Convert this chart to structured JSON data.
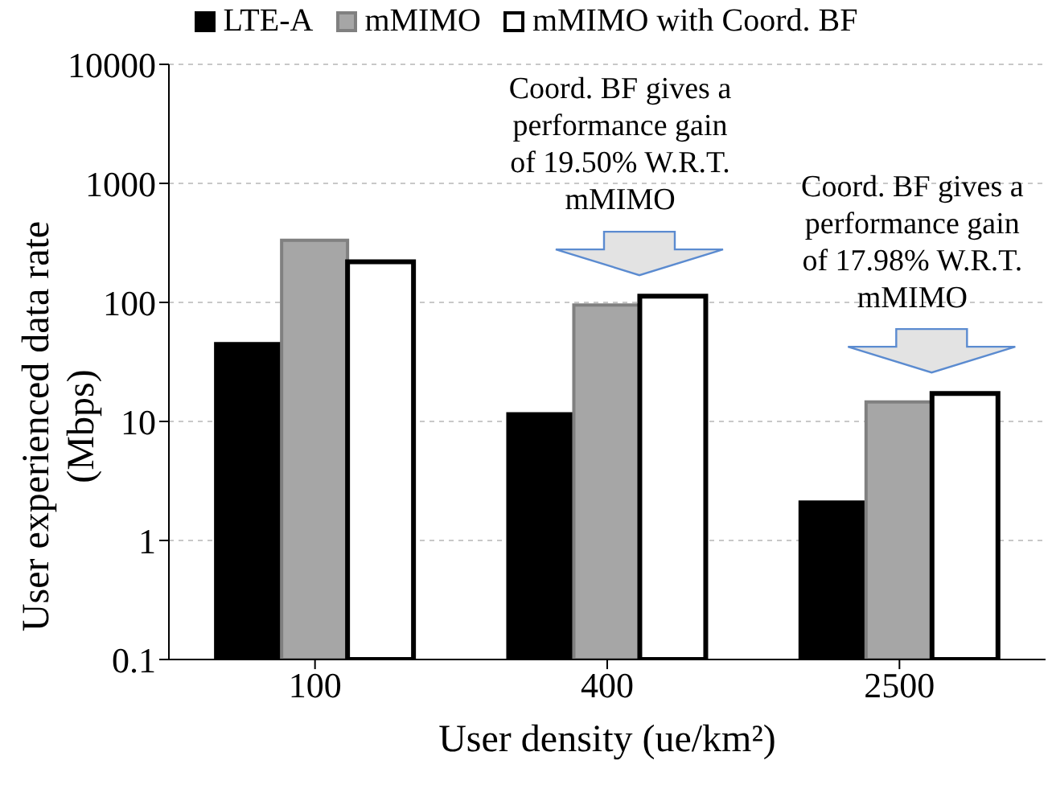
{
  "chart_data": {
    "type": "bar",
    "xlabel": "User density (ue/km²)",
    "ylabel": "User experienced data rate (Mbps)",
    "categories": [
      "100",
      "400",
      "2500"
    ],
    "series": [
      {
        "name": "LTE-A",
        "color": "#000000",
        "values": [
          45,
          11.6,
          2.1
        ]
      },
      {
        "name": "mMIMO",
        "color": "#a6a6a6",
        "values": [
          333,
          95,
          14.6
        ]
      },
      {
        "name": "mMIMO with Coord. BF",
        "color": "#ffffff",
        "values": [
          219,
          113,
          17.2
        ]
      }
    ],
    "log": "y",
    "ylim": [
      0.1,
      10000
    ],
    "yticks": [
      0.1,
      1,
      10,
      100,
      1000,
      10000
    ],
    "grid": "y",
    "legend": "top",
    "annotations": [
      "Coord. BF gives a performance gain of 19.50% W.R.T. mMIMO",
      "Coord. BF gives a performance gain of 17.98% W.R.T. mMIMO"
    ]
  }
}
